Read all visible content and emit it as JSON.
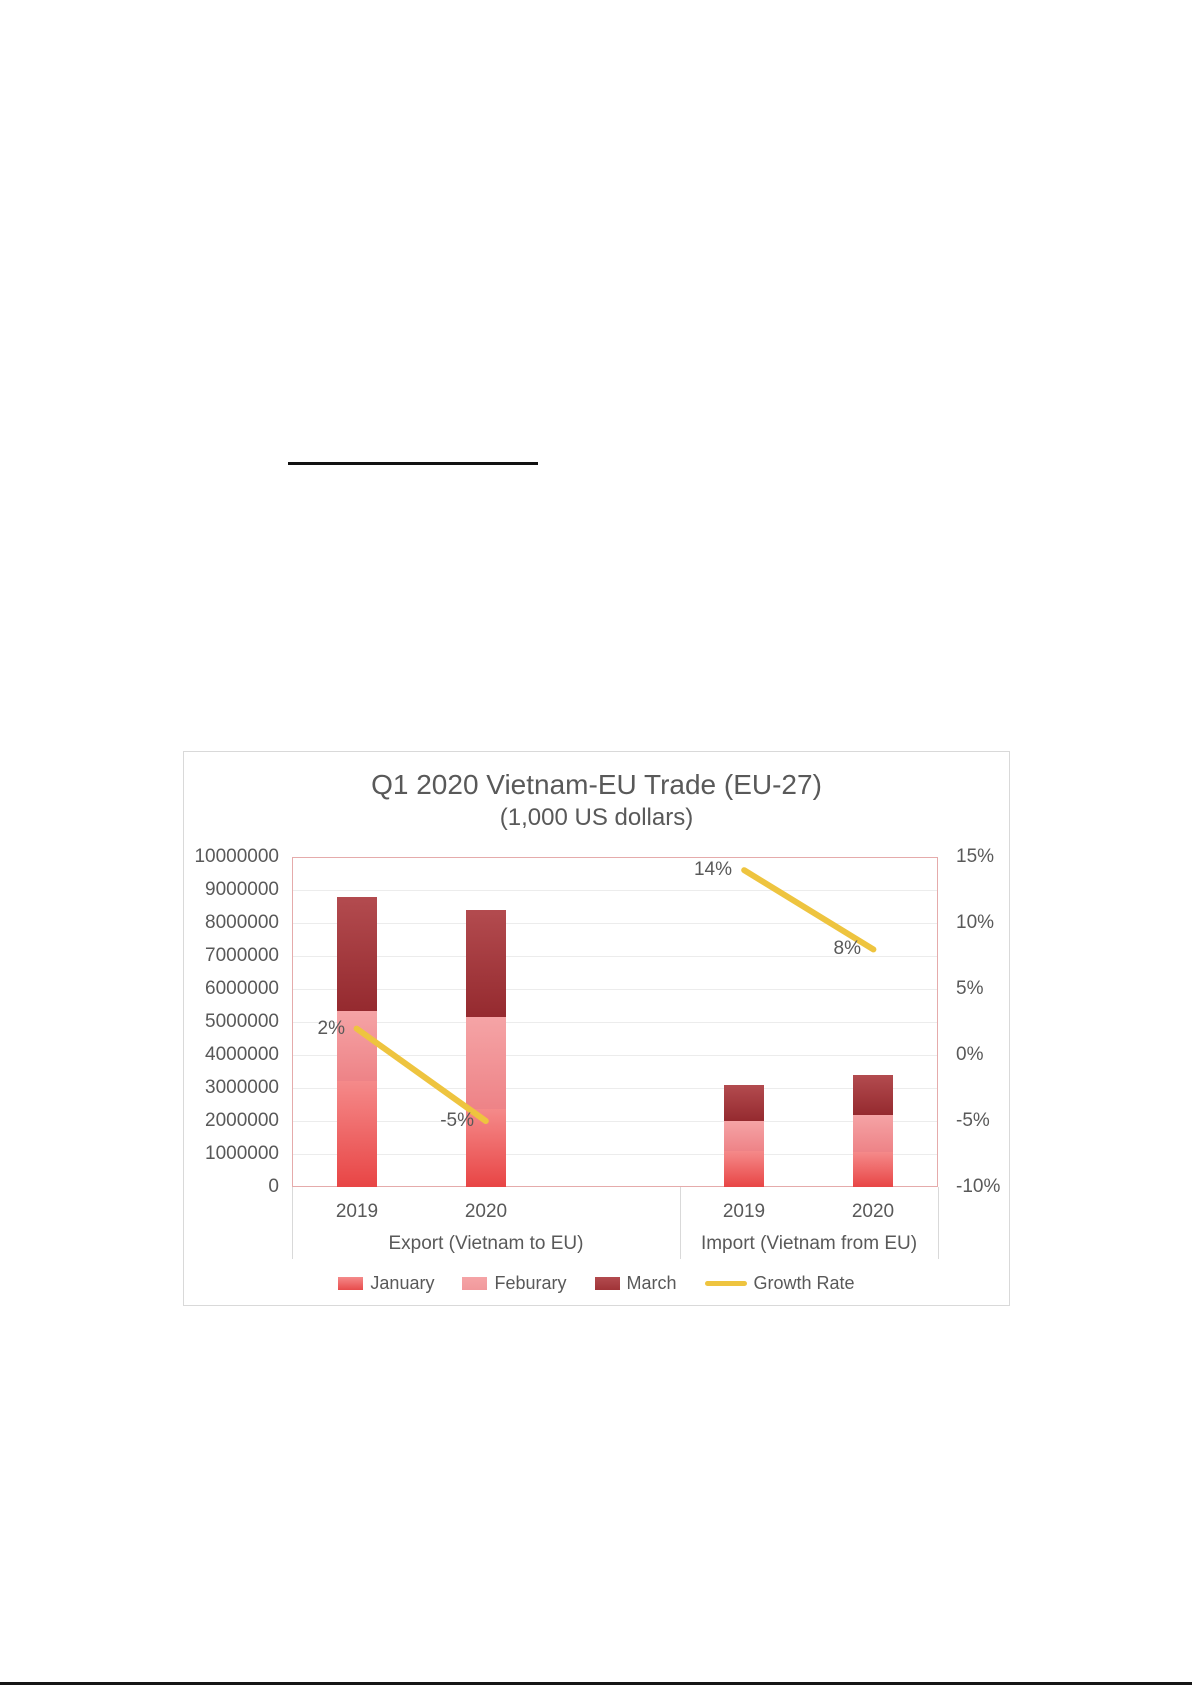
{
  "chart_data": {
    "type": "bar",
    "stacked": true,
    "title": "Q1 2020 Vietnam-EU Trade (EU-27)",
    "subtitle": "(1,000 US dollars)",
    "grid": true,
    "legend_position": "bottom",
    "groups": [
      {
        "label": "Export (Vietnam to EU)",
        "categories": [
          "2019",
          "2020"
        ]
      },
      {
        "label": "Import (Vietnam from EU)",
        "categories": [
          "2019",
          "2020"
        ]
      }
    ],
    "series": [
      {
        "name": "January",
        "values": [
          3200000,
          2350000,
          1100000,
          1050000
        ],
        "color_top": "#f58a8a",
        "color_bottom": "#e84545",
        "legend_color": "#e74c4c"
      },
      {
        "name": "Feburary",
        "values": [
          2150000,
          2800000,
          900000,
          1150000
        ],
        "color_top": "#f5a4a6",
        "color_bottom": "#ee8387",
        "legend_color": "#f1999c"
      },
      {
        "name": "March",
        "values": [
          3450000,
          3250000,
          1100000,
          1200000
        ],
        "color_top": "#b34b4f",
        "color_bottom": "#952a2f",
        "legend_color": "#a03438"
      }
    ],
    "line_series": {
      "name": "Growth Rate",
      "color": "#eec43f",
      "values_pct": [
        2,
        -5,
        14,
        8
      ],
      "point_labels": [
        "2%",
        "-5%",
        "14%",
        "8%"
      ]
    },
    "left_axis": {
      "min": 0,
      "max": 10000000,
      "tick_labels": [
        "10000000",
        "9000000",
        "8000000",
        "7000000",
        "6000000",
        "5000000",
        "4000000",
        "3000000",
        "2000000",
        "1000000",
        "0"
      ]
    },
    "right_axis": {
      "min": -10,
      "max": 15,
      "tick_labels": [
        "15%",
        "10%",
        "5%",
        "0%",
        "-5%",
        "-10%"
      ]
    }
  }
}
